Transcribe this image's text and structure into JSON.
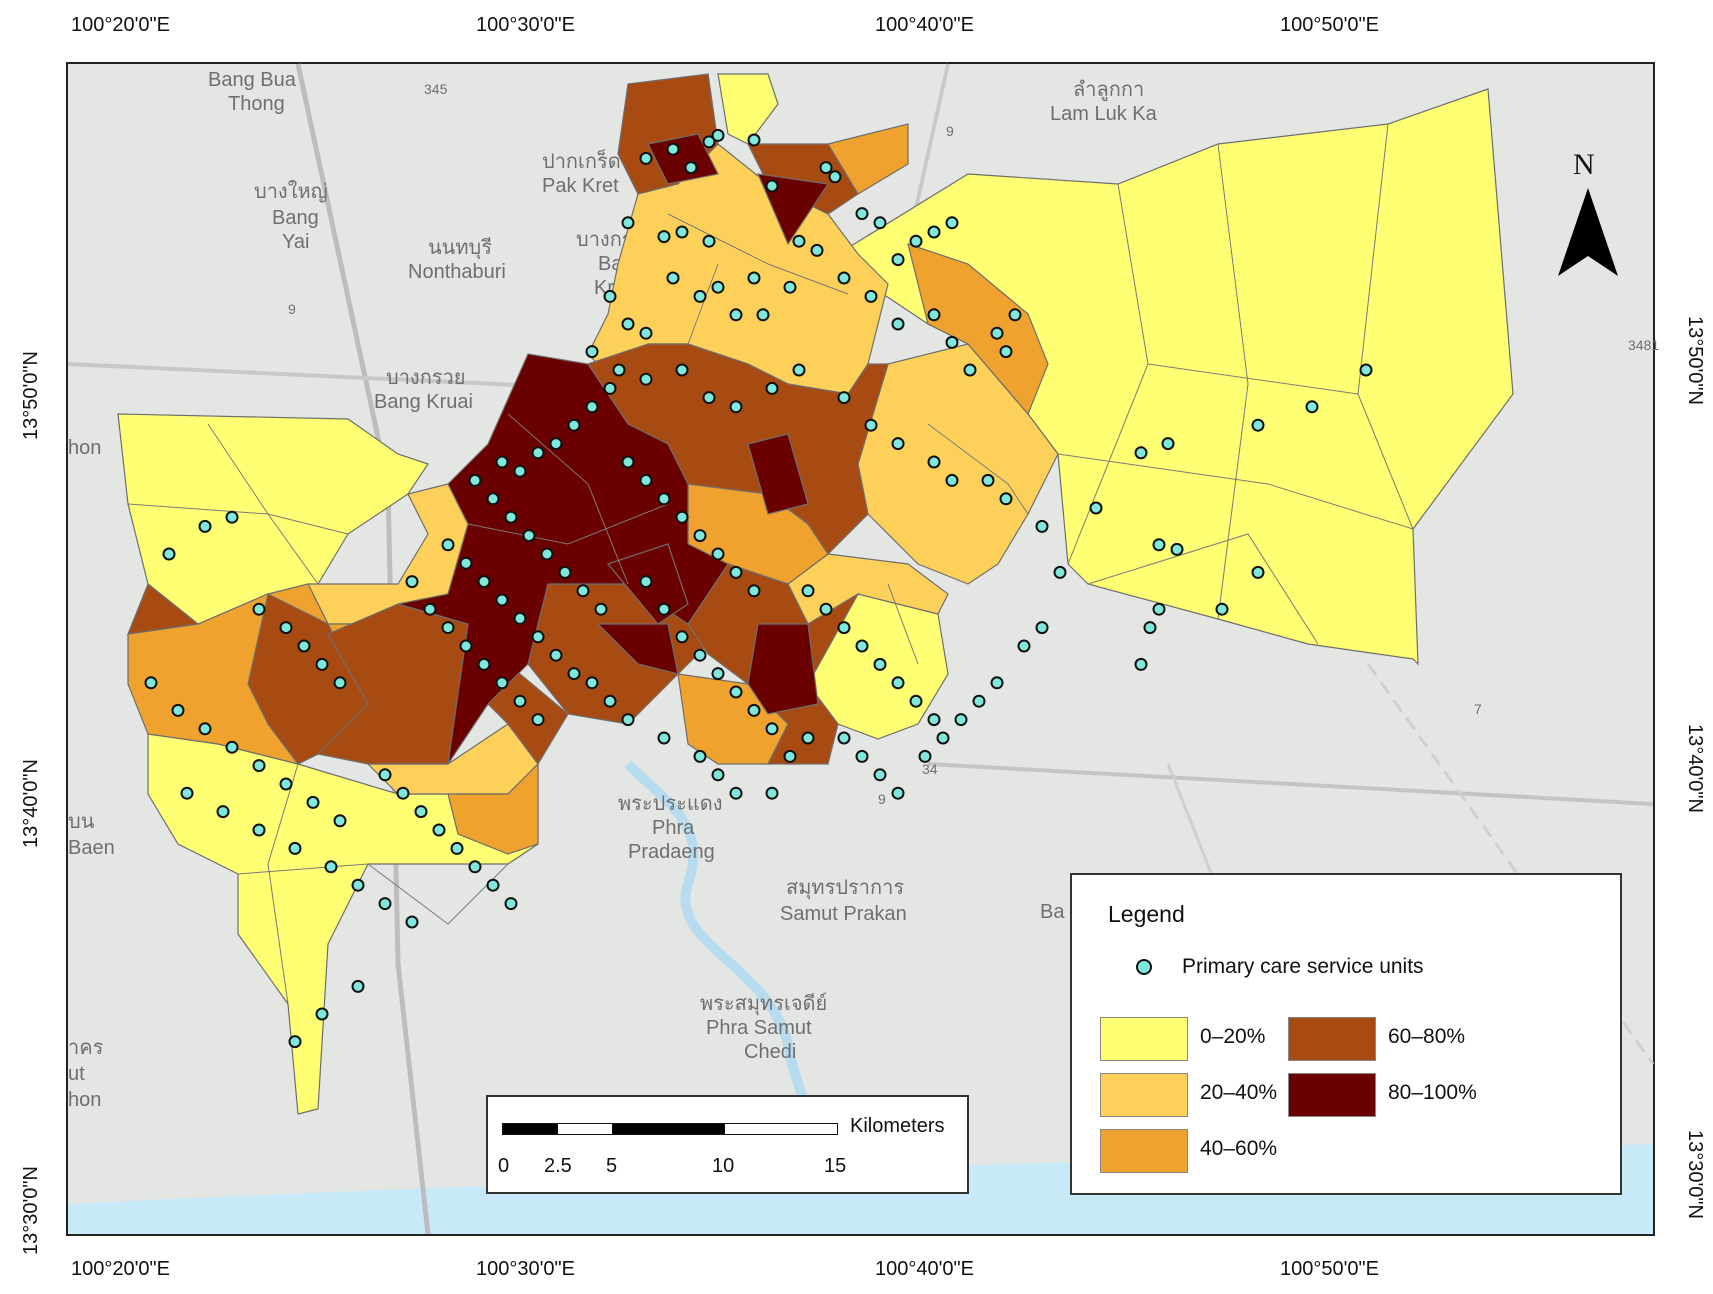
{
  "top_coords": [
    "100°20'0\"E",
    "100°30'0\"E",
    "100°40'0\"E",
    "100°50'0\"E"
  ],
  "bottom_coords": [
    "100°20'0\"E",
    "100°30'0\"E",
    "100°40'0\"E",
    "100°50'0\"E"
  ],
  "left_coords": [
    "13°50'0\"N",
    "13°40'0\"N",
    "13°30'0\"N"
  ],
  "right_coords": [
    "13°50'0\"N",
    "13°40'0\"N",
    "13°30'0\"N"
  ],
  "places": [
    {
      "text": "Bang Bua"
    },
    {
      "text": "Thong"
    },
    {
      "text": "ลำลูกกา"
    },
    {
      "text": "Lam Luk Ka"
    },
    {
      "text": "ปากเกร็ด"
    },
    {
      "text": "Pak Kret"
    },
    {
      "text": "บางใหญ่"
    },
    {
      "text": "Bang"
    },
    {
      "text": "Yai"
    },
    {
      "text": "นนทบุรี"
    },
    {
      "text": "Nonthaburi"
    },
    {
      "text": "บางกระส"
    },
    {
      "text": "Bang"
    },
    {
      "text": "Kraso"
    },
    {
      "text": "บางกรวย"
    },
    {
      "text": "Bang Kruai"
    },
    {
      "text": "พระประแดง"
    },
    {
      "text": "Phra"
    },
    {
      "text": "Pradaeng"
    },
    {
      "text": "สมุทรปราการ"
    },
    {
      "text": "Samut Prakan"
    },
    {
      "text": "พระสมุทรเจดีย์"
    },
    {
      "text": "Phra Samut"
    },
    {
      "text": "Chedi"
    },
    {
      "text": "hon"
    },
    {
      "text": "บน"
    },
    {
      "text": "Baen"
    },
    {
      "text": "าคร"
    },
    {
      "text": "ut"
    },
    {
      "text": "hon"
    },
    {
      "text": "Ba"
    }
  ],
  "road_labels": [
    "345",
    "9",
    "9",
    "9",
    "34",
    "3481",
    "7"
  ],
  "north_label": "N",
  "legend": {
    "title": "Legend",
    "point_label": "Primary care service units",
    "point_color": "#7ee8dc",
    "classes": [
      {
        "label": "0–20%",
        "color": "#ffff73"
      },
      {
        "label": "20–40%",
        "color": "#fdd05a"
      },
      {
        "label": "40–60%",
        "color": "#f0a22e"
      },
      {
        "label": "60–80%",
        "color": "#a84b13"
      },
      {
        "label": "80–100%",
        "color": "#6b0000"
      }
    ]
  },
  "scale": {
    "unit": "Kilometers",
    "ticks": [
      "0",
      "2.5",
      "5",
      "10",
      "15"
    ]
  }
}
